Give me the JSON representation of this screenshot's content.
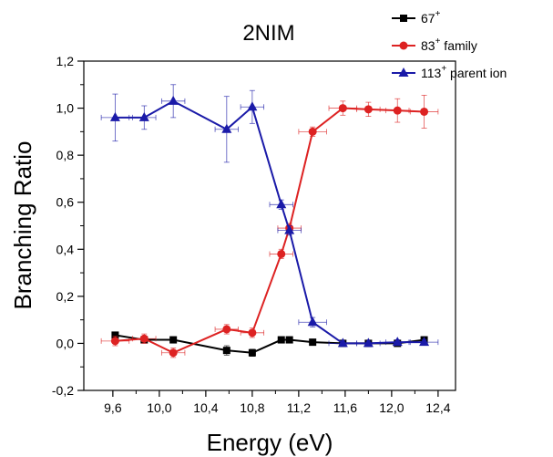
{
  "chart_data": {
    "type": "line",
    "title": "2NIM",
    "xlabel": "Energy (eV)",
    "ylabel": "Branching Ratio",
    "xlim": [
      9.35,
      12.55
    ],
    "ylim": [
      -0.2,
      1.2
    ],
    "x_ticks": [
      9.6,
      10.0,
      10.4,
      10.8,
      11.2,
      11.6,
      12.0,
      12.4
    ],
    "x_tick_labels": [
      "9,6",
      "10,0",
      "10,4",
      "10,8",
      "11,2",
      "11,6",
      "12,0",
      "12,4"
    ],
    "y_ticks": [
      -0.2,
      0.0,
      0.2,
      0.4,
      0.6,
      0.8,
      1.0,
      1.2
    ],
    "y_tick_labels": [
      "-0,2",
      "0,0",
      "0,2",
      "0,4",
      "0,6",
      "0,8",
      "1,0",
      "1,2"
    ],
    "grid": false,
    "legend_position": "top-right",
    "series": [
      {
        "name": "67",
        "name_sup": "+",
        "color": "#000000",
        "marker": "square",
        "x": [
          9.62,
          9.87,
          10.12,
          10.58,
          10.8,
          11.05,
          11.12,
          11.32,
          11.58,
          11.8,
          12.05,
          12.28
        ],
        "y": [
          0.035,
          0.015,
          0.015,
          -0.03,
          -0.04,
          0.015,
          0.015,
          0.005,
          0.0,
          0.0,
          0.0,
          0.015
        ],
        "xerr": [
          0.0,
          0.0,
          0.0,
          0.0,
          0.0,
          0.0,
          0.0,
          0.0,
          0.0,
          0.0,
          0.0,
          0.0
        ],
        "yerr": [
          0.01,
          0.01,
          0.01,
          0.02,
          0.015,
          0.01,
          0.01,
          0.01,
          0.01,
          0.01,
          0.01,
          0.01
        ]
      },
      {
        "name": "83",
        "name_sup": "+",
        "name_suffix": " family",
        "color": "#dd2222",
        "marker": "circle",
        "x": [
          9.62,
          9.87,
          10.12,
          10.58,
          10.8,
          11.05,
          11.12,
          11.32,
          11.58,
          11.8,
          12.05,
          12.28
        ],
        "y": [
          0.01,
          0.02,
          -0.04,
          0.06,
          0.045,
          0.38,
          0.49,
          0.9,
          1.0,
          0.995,
          0.99,
          0.985
        ],
        "xerr": [
          0.12,
          0.1,
          0.1,
          0.1,
          0.1,
          0.1,
          0.1,
          0.12,
          0.12,
          0.1,
          0.1,
          0.12
        ],
        "yerr": [
          0.02,
          0.02,
          0.02,
          0.02,
          0.02,
          0.02,
          0.02,
          0.02,
          0.03,
          0.03,
          0.05,
          0.07
        ]
      },
      {
        "name": "113",
        "name_sup": "+",
        "name_suffix": " parent ion",
        "color": "#1a1aa8",
        "marker": "triangle",
        "x": [
          9.62,
          9.87,
          10.12,
          10.58,
          10.8,
          11.05,
          11.12,
          11.32,
          11.58,
          11.8,
          12.05,
          12.28
        ],
        "y": [
          0.96,
          0.96,
          1.03,
          0.91,
          1.005,
          0.59,
          0.48,
          0.09,
          0.0,
          0.0,
          0.005,
          0.005
        ],
        "xerr": [
          0.12,
          0.1,
          0.1,
          0.1,
          0.1,
          0.1,
          0.1,
          0.12,
          0.12,
          0.1,
          0.1,
          0.12
        ],
        "yerr": [
          0.1,
          0.05,
          0.07,
          0.14,
          0.07,
          0.02,
          0.02,
          0.02,
          0.01,
          0.01,
          0.01,
          0.01
        ]
      }
    ]
  }
}
